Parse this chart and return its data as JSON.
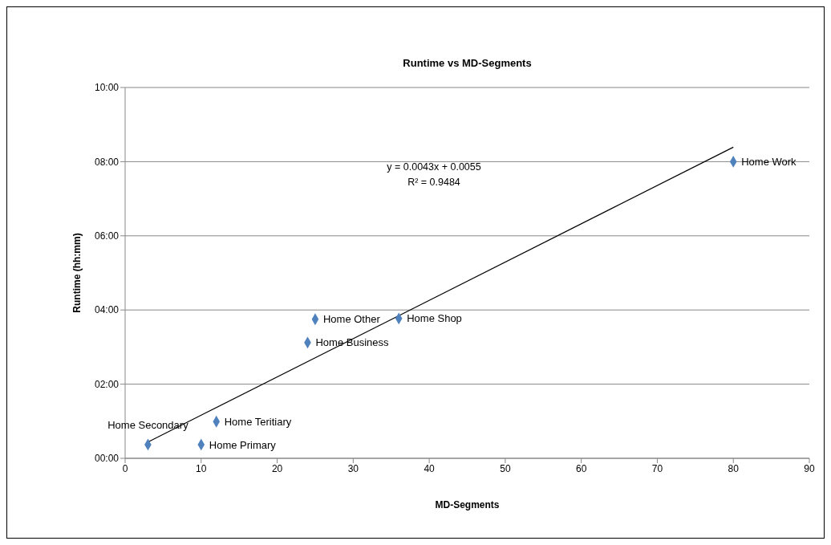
{
  "chart_data": {
    "type": "scatter",
    "title": "Runtime vs MD-Segments",
    "xlabel": "MD-Segments",
    "ylabel": "Runtime (hh:mm)",
    "series": [
      {
        "color": "#4f81bd",
        "x": [
          80,
          25,
          36,
          24,
          12,
          3,
          10
        ],
        "values": [
          8.0,
          3.75,
          3.77,
          3.12,
          0.99,
          0.37,
          0.37
        ]
      },
      {
        "type": "line",
        "color": "#000000",
        "marker": "none",
        "x": [
          3,
          80
        ],
        "values": [
          0.44,
          8.39
        ]
      }
    ],
    "xlim": [
      0,
      90
    ],
    "xticks": [
      0,
      10,
      20,
      30,
      40,
      50,
      60,
      70,
      80,
      90
    ],
    "ylim": [
      0,
      10
    ],
    "yticks": [
      {
        "value": 0,
        "label": "00:00"
      },
      {
        "value": 2,
        "label": "02:00"
      },
      {
        "value": 4,
        "label": "04:00"
      },
      {
        "value": 6,
        "label": "06:00"
      },
      {
        "value": 8,
        "label": "08:00"
      },
      {
        "value": 10,
        "label": "10:00"
      }
    ],
    "grid": "y",
    "legend": false,
    "marker": "diamond",
    "line_style": "solid",
    "annotations": [
      {
        "text": "Home Work",
        "x": 80,
        "y": 8.0
      },
      {
        "text": "Home Other",
        "x": 25,
        "y": 3.75
      },
      {
        "text": "Home Shop",
        "x": 36,
        "y": 3.77
      },
      {
        "text": "Home Business",
        "x": 24,
        "y": 3.12
      },
      {
        "text": "Home Teritiary",
        "x": 12,
        "y": 0.99
      },
      {
        "text": "Home Secondary",
        "x": 3,
        "y": 0.37
      },
      {
        "text": "Home Primary",
        "x": 10,
        "y": 0.37
      },
      "y = 0.0043x  + 0.0055",
      "R² = 0.9484"
    ]
  }
}
